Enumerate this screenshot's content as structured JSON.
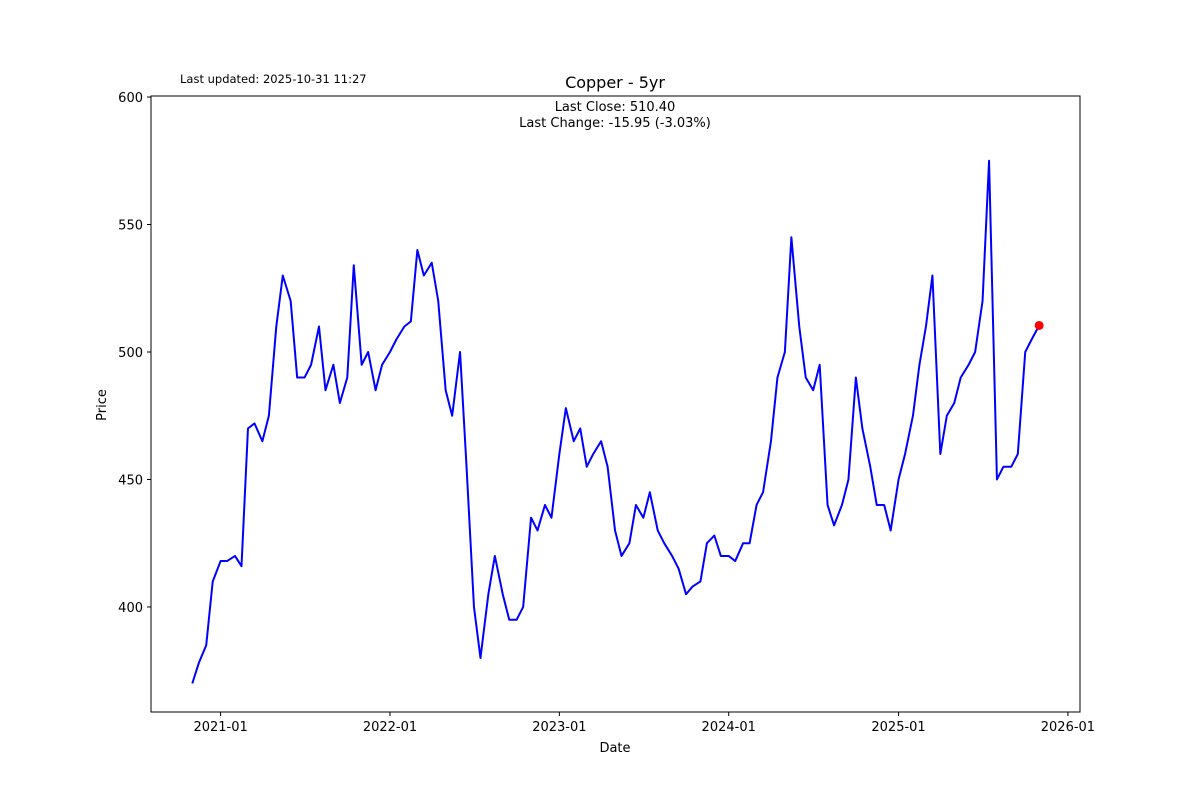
{
  "chart_data": {
    "type": "line",
    "title": "Copper - 5yr",
    "subtitle": "Last updated: 2025-10-31 11:27",
    "annotations": [
      "Last Close: 510.40",
      "Last Change: -15.95 (-3.03%)"
    ],
    "x_label": "Date",
    "y_label": "Price",
    "x": [
      "2020-11-01",
      "2020-11-15",
      "2020-12-01",
      "2020-12-15",
      "2021-01-01",
      "2021-01-15",
      "2021-02-01",
      "2021-02-15",
      "2021-03-01",
      "2021-03-15",
      "2021-04-01",
      "2021-04-15",
      "2021-05-01",
      "2021-05-15",
      "2021-06-01",
      "2021-06-15",
      "2021-07-01",
      "2021-07-15",
      "2021-08-01",
      "2021-08-15",
      "2021-09-01",
      "2021-09-15",
      "2021-10-01",
      "2021-10-15",
      "2021-11-01",
      "2021-11-15",
      "2021-12-01",
      "2021-12-15",
      "2022-01-01",
      "2022-01-15",
      "2022-02-01",
      "2022-02-15",
      "2022-03-01",
      "2022-03-15",
      "2022-04-01",
      "2022-04-15",
      "2022-05-01",
      "2022-05-15",
      "2022-06-01",
      "2022-06-15",
      "2022-07-01",
      "2022-07-15",
      "2022-08-01",
      "2022-08-15",
      "2022-09-01",
      "2022-09-15",
      "2022-10-01",
      "2022-10-15",
      "2022-11-01",
      "2022-11-15",
      "2022-12-01",
      "2022-12-15",
      "2023-01-01",
      "2023-01-15",
      "2023-02-01",
      "2023-02-15",
      "2023-03-01",
      "2023-03-15",
      "2023-04-01",
      "2023-04-15",
      "2023-05-01",
      "2023-05-15",
      "2023-06-01",
      "2023-06-15",
      "2023-07-01",
      "2023-07-15",
      "2023-08-01",
      "2023-08-15",
      "2023-09-01",
      "2023-09-15",
      "2023-10-01",
      "2023-10-15",
      "2023-11-01",
      "2023-11-15",
      "2023-12-01",
      "2023-12-15",
      "2024-01-01",
      "2024-01-15",
      "2024-02-01",
      "2024-02-15",
      "2024-03-01",
      "2024-03-15",
      "2024-04-01",
      "2024-04-15",
      "2024-05-01",
      "2024-05-15",
      "2024-06-01",
      "2024-06-15",
      "2024-07-01",
      "2024-07-15",
      "2024-08-01",
      "2024-08-15",
      "2024-09-01",
      "2024-09-15",
      "2024-10-01",
      "2024-10-15",
      "2024-11-01",
      "2024-11-15",
      "2024-12-01",
      "2024-12-15",
      "2025-01-01",
      "2025-01-15",
      "2025-02-01",
      "2025-02-15",
      "2025-03-01",
      "2025-03-15",
      "2025-04-01",
      "2025-04-15",
      "2025-05-01",
      "2025-05-15",
      "2025-06-01",
      "2025-06-15",
      "2025-07-01",
      "2025-07-15",
      "2025-08-01",
      "2025-08-15",
      "2025-09-01",
      "2025-09-15",
      "2025-10-01",
      "2025-10-15",
      "2025-10-31"
    ],
    "series": [
      {
        "name": "Copper",
        "color": "#0000ff",
        "values": [
          370,
          378,
          385,
          410,
          418,
          418,
          420,
          416,
          470,
          472,
          465,
          475,
          510,
          530,
          520,
          490,
          490,
          495,
          510,
          485,
          495,
          480,
          490,
          534,
          495,
          500,
          485,
          495,
          500,
          505,
          510,
          512,
          540,
          530,
          535,
          520,
          485,
          475,
          500,
          455,
          400,
          380,
          405,
          420,
          405,
          395,
          395,
          400,
          435,
          430,
          440,
          435,
          460,
          478,
          465,
          470,
          455,
          460,
          465,
          455,
          430,
          420,
          425,
          440,
          435,
          445,
          430,
          425,
          420,
          415,
          405,
          408,
          410,
          425,
          428,
          420,
          420,
          418,
          425,
          425,
          440,
          445,
          465,
          490,
          500,
          545,
          510,
          490,
          485,
          495,
          440,
          432,
          440,
          450,
          490,
          470,
          455,
          440,
          440,
          430,
          450,
          460,
          475,
          495,
          510,
          530,
          460,
          475,
          480,
          490,
          495,
          500,
          520,
          575,
          450,
          455,
          455,
          460,
          500,
          505,
          510.4
        ]
      }
    ],
    "last_point_color": "#ff0000",
    "xlim": [
      "2020-08-04",
      "2026-01-27"
    ],
    "xticks": [
      {
        "value": "2021-01-01",
        "label": "2021-01"
      },
      {
        "value": "2022-01-01",
        "label": "2022-01"
      },
      {
        "value": "2023-01-01",
        "label": "2023-01"
      },
      {
        "value": "2024-01-01",
        "label": "2024-01"
      },
      {
        "value": "2025-01-01",
        "label": "2025-01"
      },
      {
        "value": "2026-01-01",
        "label": "2026-01"
      }
    ],
    "ylim": [
      358.8,
      600.4
    ],
    "yticks": [
      400,
      450,
      500,
      550,
      600
    ]
  }
}
